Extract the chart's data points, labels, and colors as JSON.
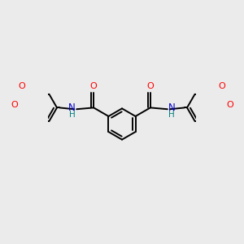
{
  "bg_color": "#ebebeb",
  "bond_color": "#000000",
  "N_color": "#0000cd",
  "O_color": "#ff0000",
  "H_color": "#008080",
  "line_width": 1.4,
  "figsize": [
    3.0,
    3.0
  ],
  "dpi": 100,
  "xlim": [
    -1.8,
    1.8
  ],
  "ylim": [
    -1.1,
    1.1
  ]
}
